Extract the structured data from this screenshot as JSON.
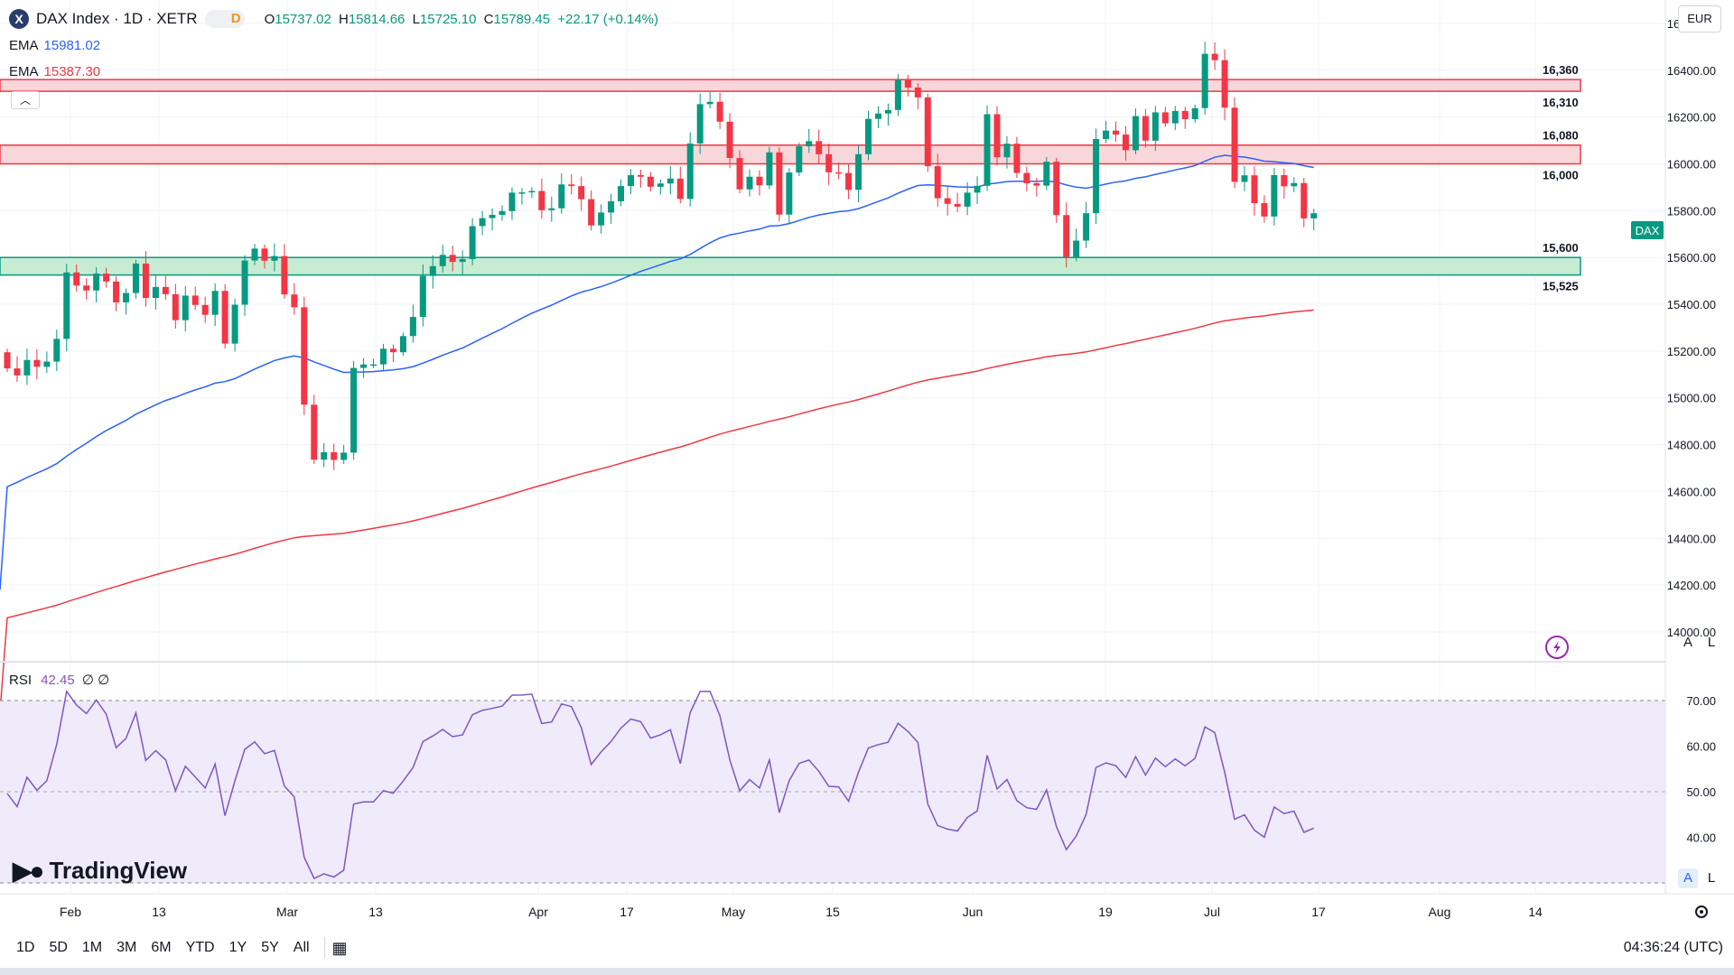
{
  "header": {
    "symbol_badge": "X",
    "title": "DAX Index · 1D · XETR",
    "interval_badge": "D",
    "ohlc": {
      "o_label": "O",
      "o": "15737.02",
      "h_label": "H",
      "h": "15814.66",
      "l_label": "L",
      "l": "15725.10",
      "c_label": "C",
      "c": "15789.45",
      "change": "+22.17 (+0.14%)"
    },
    "collapse_icon": "chevron-up-icon"
  },
  "indicators": {
    "ema1": {
      "label": "EMA",
      "value": "15981.02",
      "color": "#2962ff"
    },
    "ema2": {
      "label": "EMA",
      "value": "15387.30",
      "color": "#f23645"
    },
    "rsi": {
      "label": "RSI",
      "value": "42.45",
      "extra": "∅ ∅",
      "color": "#7e57c2"
    }
  },
  "currency": "EUR",
  "price_axis": {
    "ticks": [
      16600,
      16400,
      16200,
      16000,
      15800,
      15600,
      15400,
      15200,
      15000,
      14800,
      14600,
      14400,
      14200,
      14000
    ],
    "last_price_label": "DAX"
  },
  "rsi_axis": {
    "ticks": [
      70,
      60,
      50,
      40
    ]
  },
  "time_axis": {
    "labels": [
      "Feb",
      "13",
      "Mar",
      "13",
      "Apr",
      "17",
      "May",
      "15",
      "Jun",
      "19",
      "Jul",
      "17",
      "Aug",
      "14"
    ]
  },
  "zones": [
    {
      "name": "resistance-zone-top",
      "from": 16310,
      "to": 16360,
      "color": "#f23645",
      "fill": "#f8d7da",
      "label_top": "16,360",
      "label_bottom": "16,310"
    },
    {
      "name": "resistance-zone-mid",
      "from": 16000,
      "to": 16080,
      "color": "#f23645",
      "fill": "#f8d7da",
      "label_top": "16,080",
      "label_bottom": "16,000"
    },
    {
      "name": "support-zone",
      "from": 15525,
      "to": 15600,
      "color": "#089981",
      "fill": "#c8ecd2",
      "label_top": "15,600",
      "label_bottom": "15,525"
    }
  ],
  "colors": {
    "up": "#089981",
    "down": "#f23645",
    "grid": "#f0f3fa",
    "accent": "#2962ff"
  },
  "watermark": "TradingView",
  "bottom_toolbar": {
    "ranges": [
      "1D",
      "5D",
      "1M",
      "3M",
      "6M",
      "YTD",
      "1Y",
      "5Y",
      "All"
    ],
    "calendar_icon": "calendar-range-icon",
    "clock": "04:36:24 (UTC)"
  },
  "scale_buttons": {
    "auto": "A",
    "log": "L"
  },
  "chart_data": {
    "type": "candlestick",
    "symbol": "DAX",
    "interval": "1D",
    "y_range": [
      14000,
      16700
    ],
    "close_start": 15195,
    "closes": [
      15126,
      15096,
      15162,
      15133,
      15155,
      15252,
      15536,
      15480,
      15459,
      15531,
      15497,
      15408,
      15448,
      15574,
      15427,
      15474,
      15443,
      15332,
      15437,
      15397,
      15355,
      15457,
      15232,
      15398,
      15587,
      15638,
      15586,
      15606,
      15442,
      15387,
      14971,
      14736,
      14768,
      14735,
      14766,
      15128,
      15143,
      15143,
      15210,
      15195,
      15264,
      15346,
      15521,
      15563,
      15611,
      15581,
      15593,
      15734,
      15768,
      15782,
      15798,
      15877,
      15878,
      15884,
      15802,
      15810,
      15912,
      15905,
      15849,
      15737,
      15792,
      15840,
      15905,
      15952,
      15945,
      15902,
      15916,
      15937,
      15850,
      16087,
      16255,
      16265,
      16180,
      16025,
      15891,
      15945,
      15908,
      16049,
      15783,
      15963,
      16075,
      16097,
      16041,
      15964,
      15961,
      15889,
      16041,
      16192,
      16215,
      16230,
      16358,
      16326,
      16284,
      15990,
      15853,
      15829,
      15817,
      15877,
      15906,
      16212,
      16028,
      16086,
      15961,
      15917,
      15907,
      16009,
      15781,
      15603,
      15672,
      15789,
      16106,
      16142,
      16125,
      16058,
      16204,
      16099,
      16220,
      16173,
      16226,
      16191,
      16238,
      16470,
      16443,
      16240,
      15923,
      15951,
      15832,
      15775,
      15952,
      15904,
      15918,
      15767,
      15789
    ]
  }
}
